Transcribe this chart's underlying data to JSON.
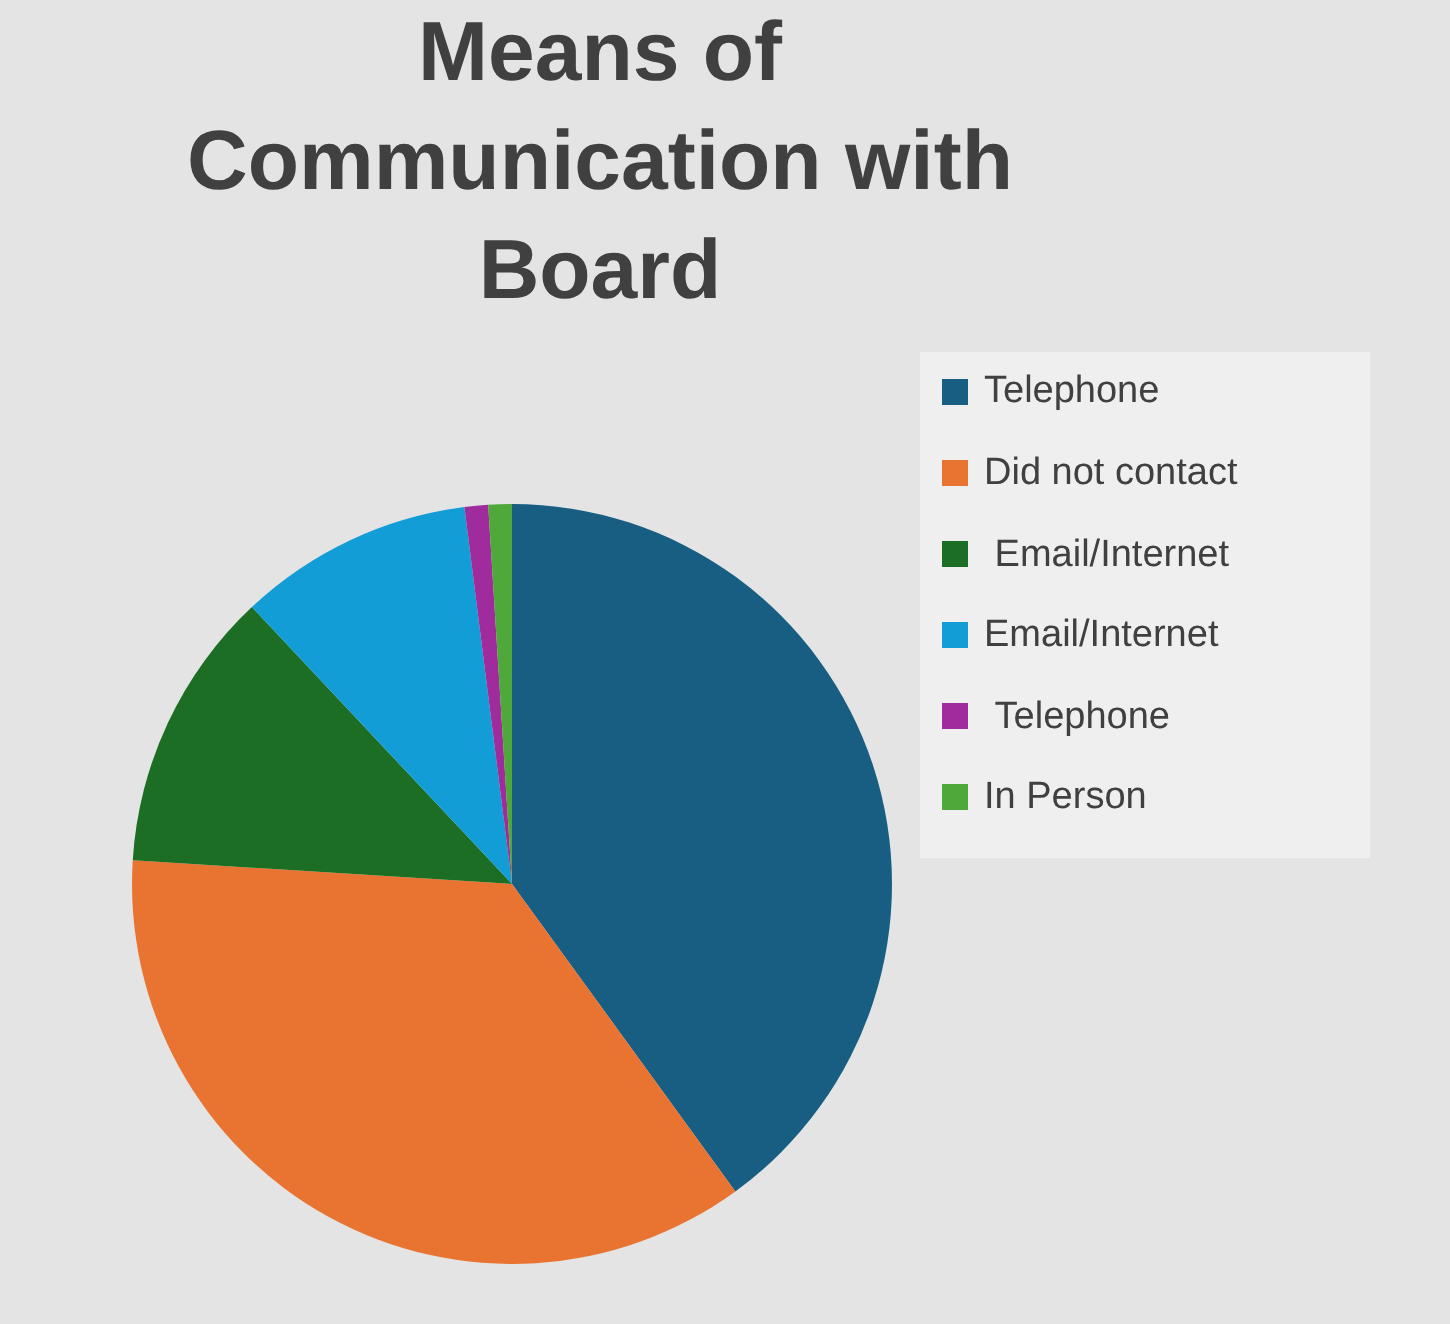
{
  "chart_data": {
    "type": "pie",
    "title": "Means of\nCommunication with\nBoard",
    "categories": [
      "Telephone",
      "Did not contact",
      " Email/Internet",
      "Email/Internet",
      " Telephone",
      "In Person"
    ],
    "values": [
      40,
      36,
      12,
      10,
      1,
      1
    ],
    "colors": [
      "#175e82",
      "#e97432",
      "#1c6e24",
      "#139dd6",
      "#a02b9c",
      "#4ea93a"
    ],
    "legend": "right"
  }
}
